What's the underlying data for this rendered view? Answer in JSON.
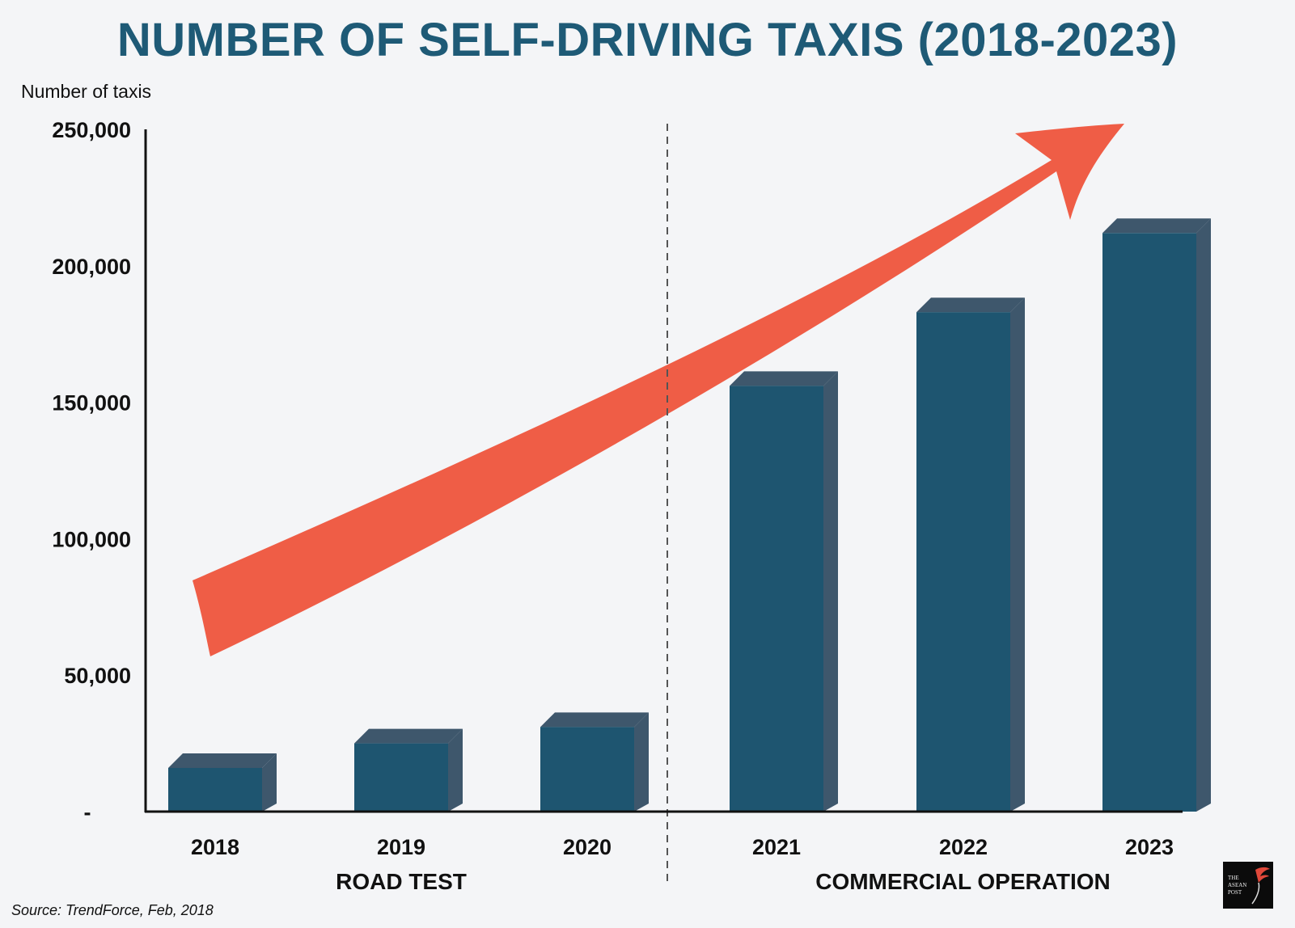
{
  "chart_data": {
    "type": "bar",
    "title": "NUMBER OF SELF-DRIVING TAXIS (2018-2023)",
    "ylabel": "Number of taxis",
    "xlabel": "",
    "categories": [
      "2018",
      "2019",
      "2020",
      "2021",
      "2022",
      "2023"
    ],
    "values": [
      16000,
      25000,
      31000,
      156000,
      183000,
      212000
    ],
    "ylim": [
      0,
      250000
    ],
    "y_ticks": [
      {
        "value": 0,
        "label": "-"
      },
      {
        "value": 50000,
        "label": "50,000"
      },
      {
        "value": 100000,
        "label": "100,000"
      },
      {
        "value": 150000,
        "label": "150,000"
      },
      {
        "value": 200000,
        "label": "200,000"
      },
      {
        "value": 250000,
        "label": "250,000"
      }
    ],
    "phases": [
      {
        "label": "ROAD TEST",
        "categories": [
          "2018",
          "2019",
          "2020"
        ]
      },
      {
        "label": "COMMERCIAL OPERATION",
        "categories": [
          "2021",
          "2022",
          "2023"
        ]
      }
    ],
    "grid": false,
    "trend_arrow": true
  },
  "source": "Source: TrendForce, Feb, 2018",
  "logo_text": "THE ASEAN POST",
  "colors": {
    "background": "#f4f5f7",
    "title": "#1e5a76",
    "bar_front": "#1e5570",
    "bar_side": "#3e576c",
    "arrow": "#ef5d46",
    "axis": "#111111"
  }
}
